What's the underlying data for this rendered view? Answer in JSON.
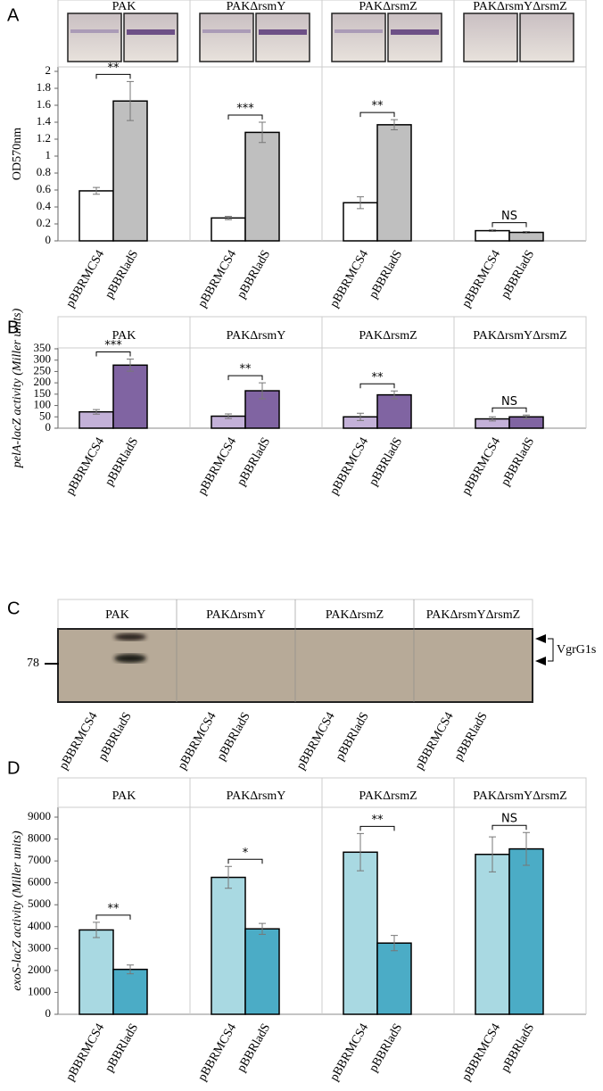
{
  "chart_data": [
    {
      "type": "bar",
      "panel": "A",
      "ylabel": "OD570nm",
      "groups": [
        "PAK",
        "PAKΔrsmY",
        "PAKΔrsmZ",
        "PAKΔrsmYΔrsmZ"
      ],
      "series": [
        {
          "name": "pBBRMCS4",
          "color": "#ffffff",
          "values": [
            0.59,
            0.27,
            0.45,
            0.12
          ],
          "errors": [
            0.04,
            0.02,
            0.07,
            0.01
          ]
        },
        {
          "name": "pBBRladS",
          "color": "#bfbfbf",
          "values": [
            1.65,
            1.28,
            1.37,
            0.1
          ],
          "errors": [
            0.23,
            0.12,
            0.06,
            0.01
          ]
        }
      ],
      "significance": [
        "**",
        "***",
        "**",
        "NS"
      ],
      "ylim": [
        0,
        2
      ],
      "yticks": [
        0,
        0.2,
        0.4,
        0.6,
        0.8,
        1,
        1.2,
        1.4,
        1.6,
        1.8,
        2
      ]
    },
    {
      "type": "bar",
      "panel": "B",
      "ylabel": "pelA-lacZ activity (Miller units)",
      "groups": [
        "PAK",
        "PAKΔrsmY",
        "PAKΔrsmZ",
        "PAKΔrsmYΔrsmZ"
      ],
      "series": [
        {
          "name": "pBBRMCS4",
          "color": "#c3b1d8",
          "values": [
            72,
            53,
            50,
            41
          ],
          "errors": [
            10,
            10,
            16,
            9
          ]
        },
        {
          "name": "pBBRladS",
          "color": "#8064a2",
          "values": [
            278,
            165,
            147,
            50
          ],
          "errors": [
            27,
            35,
            17,
            8
          ]
        }
      ],
      "significance": [
        "***",
        "**",
        "**",
        "NS"
      ],
      "ylim": [
        0,
        350
      ],
      "yticks": [
        0,
        50,
        100,
        150,
        200,
        250,
        300,
        350
      ]
    },
    {
      "type": "bar",
      "panel": "D",
      "ylabel": "exoS-lacZ activity (Miller units)",
      "groups": [
        "PAK",
        "PAKΔrsmY",
        "PAKΔrsmZ",
        "PAKΔrsmYΔrsmZ"
      ],
      "series": [
        {
          "name": "pBBRMCS4",
          "color": "#a9d9e2",
          "values": [
            3850,
            6250,
            7400,
            7300
          ],
          "errors": [
            350,
            500,
            850,
            800
          ]
        },
        {
          "name": "pBBRladS",
          "color": "#4bacc6",
          "values": [
            2050,
            3900,
            3250,
            7550
          ],
          "errors": [
            200,
            250,
            350,
            750
          ]
        }
      ],
      "significance": [
        "**",
        "*",
        "**",
        "NS"
      ],
      "ylim": [
        0,
        9000
      ],
      "yticks": [
        0,
        1000,
        2000,
        3000,
        4000,
        5000,
        6000,
        7000,
        8000,
        9000
      ]
    }
  ],
  "blot": {
    "panel": "C",
    "groups": [
      "PAK",
      "PAKΔrsmY",
      "PAKΔrsmZ",
      "PAKΔrsmYΔrsmZ"
    ],
    "lanes": [
      "pBBRMCS4",
      "pBBRladS"
    ],
    "marker": "78",
    "band_label": "VgrG1s"
  }
}
